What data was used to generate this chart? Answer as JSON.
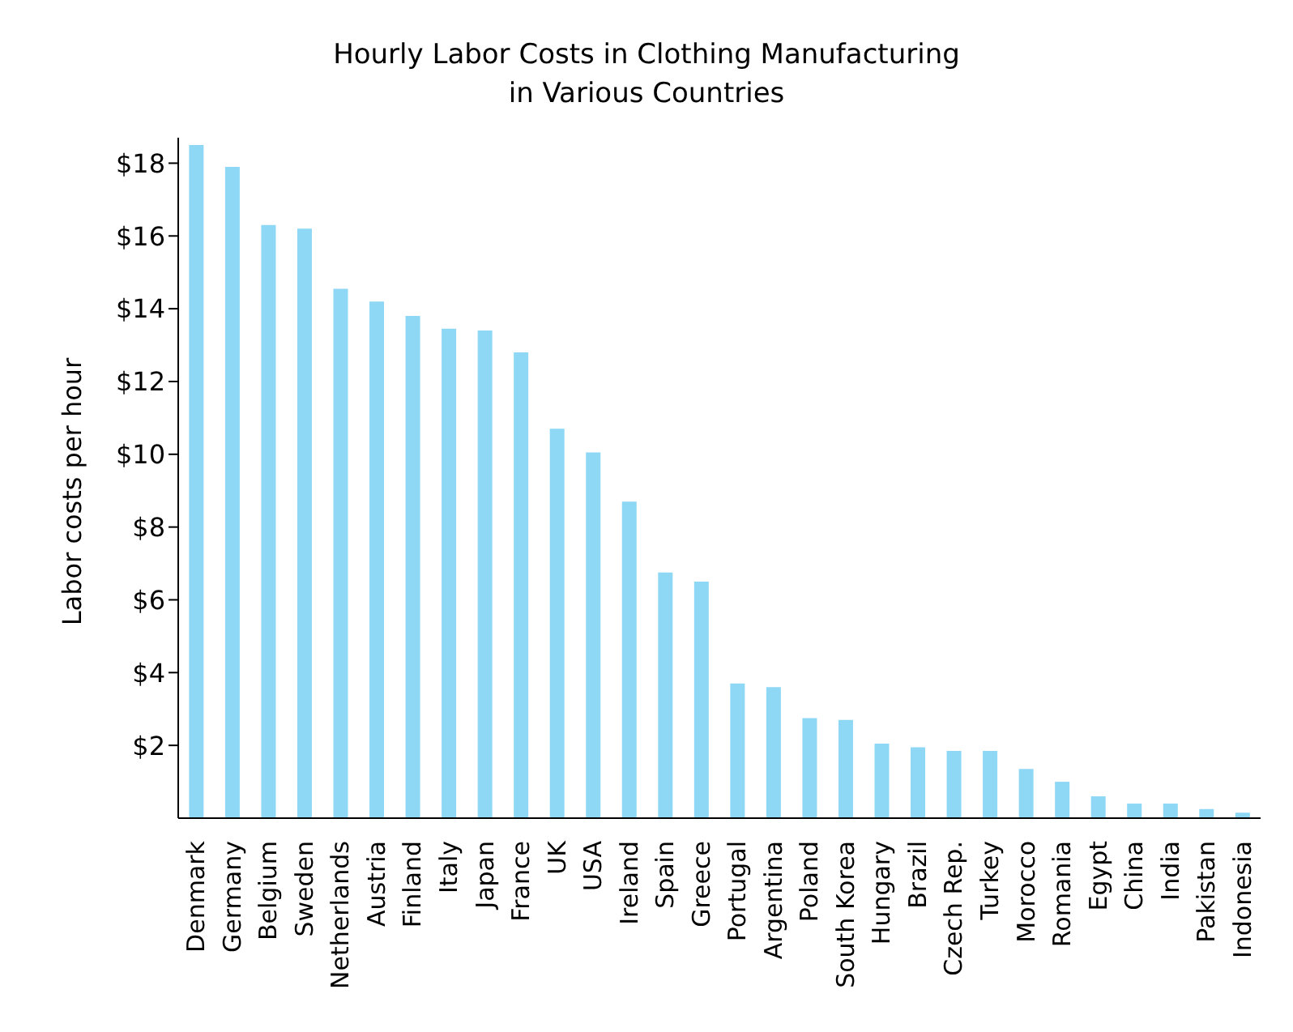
{
  "chart_data": {
    "type": "bar",
    "title": "Hourly Labor Costs in Clothing Manufacturing\nin Various Countries",
    "ylabel": "Labor costs per hour",
    "categories": [
      "Denmark",
      "Germany",
      "Belgium",
      "Sweden",
      "Netherlands",
      "Austria",
      "Finland",
      "Italy",
      "Japan",
      "France",
      "UK",
      "USA",
      "Ireland",
      "Spain",
      "Greece",
      "Portugal",
      "Argentina",
      "Poland",
      "South Korea",
      "Hungary",
      "Brazil",
      "Czech Rep.",
      "Turkey",
      "Morocco",
      "Romania",
      "Egypt",
      "China",
      "India",
      "Pakistan",
      "Indonesia"
    ],
    "values": [
      18.5,
      17.9,
      16.3,
      16.2,
      14.55,
      14.2,
      13.8,
      13.45,
      13.4,
      12.8,
      10.7,
      10.05,
      8.7,
      6.75,
      6.5,
      3.7,
      3.6,
      2.75,
      2.7,
      2.05,
      1.95,
      1.85,
      1.85,
      1.35,
      1.0,
      0.6,
      0.4,
      0.4,
      0.25,
      0.15
    ],
    "color": "#8fd8f5",
    "ylim": [
      0,
      18.7
    ],
    "yticks": [
      {
        "value": 2,
        "label": "$2"
      },
      {
        "value": 4,
        "label": "$4"
      },
      {
        "value": 6,
        "label": "$6"
      },
      {
        "value": 8,
        "label": "$8"
      },
      {
        "value": 10,
        "label": "$10"
      },
      {
        "value": 12,
        "label": "$12"
      },
      {
        "value": 14,
        "label": "$14"
      },
      {
        "value": 16,
        "label": "$16"
      },
      {
        "value": 18,
        "label": "$18"
      }
    ],
    "grid": false,
    "legend": false
  }
}
